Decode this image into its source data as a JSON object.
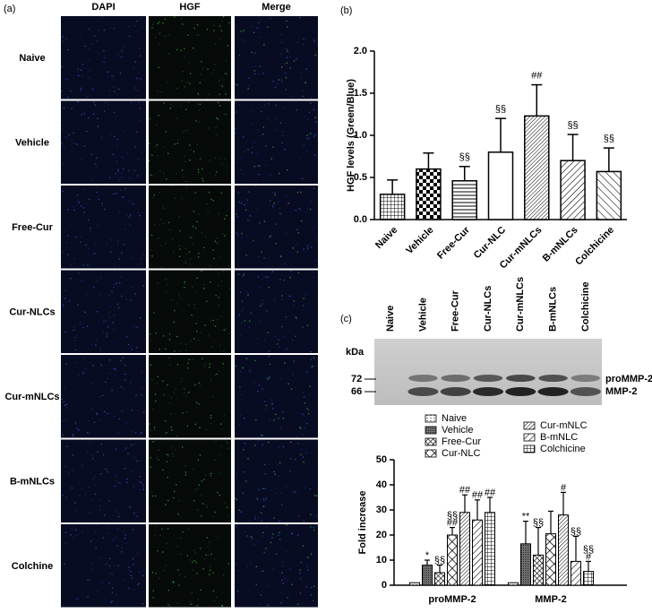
{
  "panel_a": {
    "label": "(a)",
    "columns": [
      "DAPI",
      "HGF",
      "Merge"
    ],
    "rows": [
      "Naive",
      "Vehicle",
      "Free-Cur",
      "Cur-NLCs",
      "Cur-mNLCs",
      "B-mNLCs",
      "Colchine"
    ]
  },
  "chart_data": [
    {
      "type": "bar",
      "label": "(b)",
      "ylabel": "HGF levels (Green/Blue)",
      "categories": [
        "Naive",
        "Vehicle",
        "Free-Cur",
        "Cur-NLC",
        "Cur-mNLCs",
        "B-mNLCs",
        "Colchicine"
      ],
      "values": [
        0.3,
        0.6,
        0.46,
        0.8,
        1.23,
        0.7,
        0.57
      ],
      "errors": [
        0.17,
        0.19,
        0.17,
        0.4,
        0.37,
        0.31,
        0.28
      ],
      "annotations": [
        null,
        null,
        "§§",
        "§§",
        "##",
        "§§",
        "§§"
      ],
      "patterns": [
        "grid",
        "checker",
        "hlines",
        "white",
        "diag-dense",
        "diag",
        "diag-sparse"
      ],
      "ylim": [
        0,
        2.0
      ],
      "yticks": [
        {
          "value": 0,
          "label": "0.0"
        },
        {
          "value": 0.5,
          "label": "0.5"
        },
        {
          "value": 1.0,
          "label": "1.0"
        },
        {
          "value": 1.5,
          "label": "1.5"
        },
        {
          "value": 2.0,
          "label": "2.0"
        }
      ]
    },
    {
      "type": "grouped_bar",
      "ylabel": "Fold increase",
      "categories": [
        "proMMP-2",
        "MMP-2"
      ],
      "series": [
        {
          "name": "Naive",
          "pattern": "hdots",
          "values": [
            1,
            1
          ],
          "errors": [
            0,
            0
          ],
          "annotations": [
            null,
            null
          ]
        },
        {
          "name": "Vehicle",
          "pattern": "dense",
          "values": [
            8,
            16.5
          ],
          "errors": [
            2,
            9
          ],
          "annotations": [
            [
              "*"
            ],
            [
              "**"
            ]
          ]
        },
        {
          "name": "Free-Cur",
          "pattern": "cross",
          "values": [
            5,
            12
          ],
          "errors": [
            3,
            11
          ],
          "annotations": [
            [
              "§§"
            ],
            [
              "§§"
            ]
          ]
        },
        {
          "name": "Cur-NLC",
          "pattern": "xcross",
          "values": [
            20,
            20.5
          ],
          "errors": [
            3,
            9
          ],
          "annotations": [
            [
              "§§",
              "##"
            ],
            null
          ]
        },
        {
          "name": "Cur-mNLC",
          "pattern": "diag-dense",
          "values": [
            29,
            28
          ],
          "errors": [
            7,
            9
          ],
          "annotations": [
            [
              "##"
            ],
            [
              "#"
            ]
          ]
        },
        {
          "name": "B-mNLC",
          "pattern": "diag",
          "values": [
            26,
            9.5
          ],
          "errors": [
            8,
            10
          ],
          "annotations": [
            [
              "##"
            ],
            [
              "§§"
            ]
          ]
        },
        {
          "name": "Colchicine",
          "pattern": "grid",
          "values": [
            29,
            5.5
          ],
          "errors": [
            6,
            4
          ],
          "annotations": [
            [
              "##"
            ],
            [
              "§§",
              "#"
            ]
          ]
        }
      ],
      "ylim": [
        0,
        50
      ],
      "yticks": [
        0,
        10,
        20,
        30,
        40,
        50
      ]
    }
  ],
  "blot": {
    "label": "(c)",
    "lanes": [
      "Naive",
      "Vehicle",
      "Free-Cur",
      "Cur-NLCs",
      "Cur-mNLCs",
      "B-mNLCs",
      "Colchicine"
    ],
    "unit": "kDa",
    "markers": [
      "72",
      "66"
    ],
    "bands": [
      "proMMP-2",
      "MMP-2"
    ]
  }
}
